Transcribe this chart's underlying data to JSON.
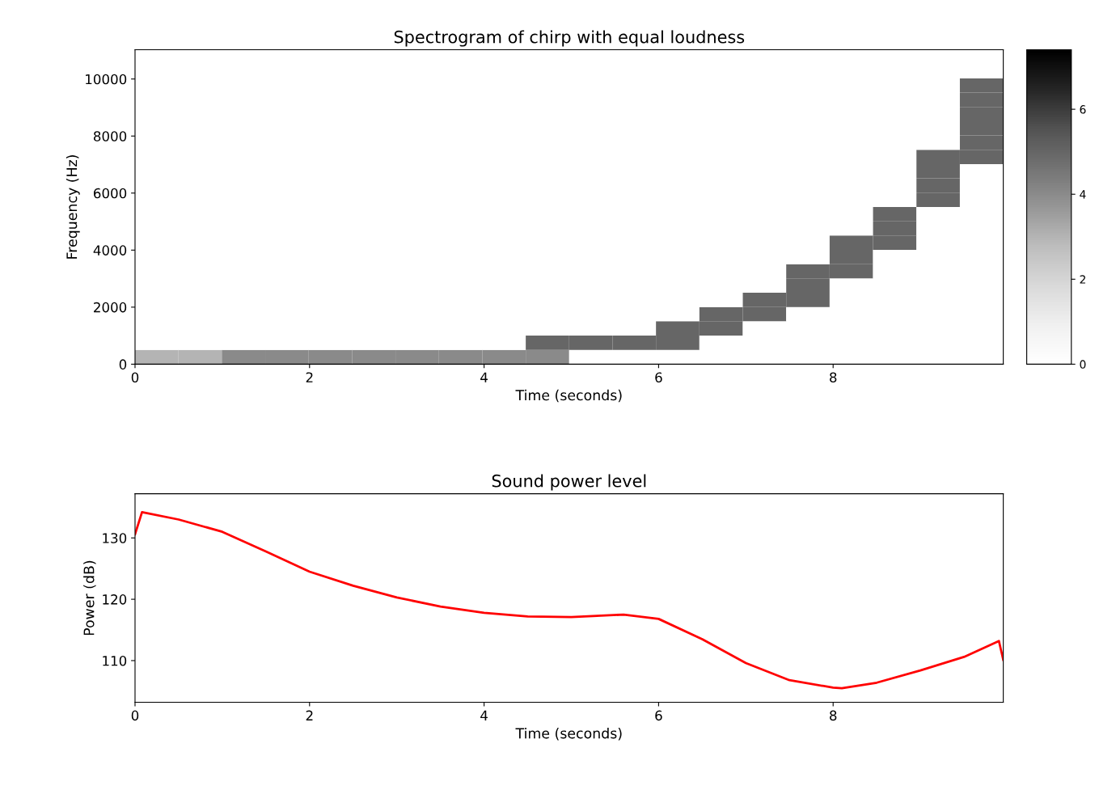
{
  "chart_data": [
    {
      "type": "heatmap",
      "title": "Spectrogram of chirp with equal loudness",
      "xlabel": "Time (seconds)",
      "ylabel": "Frequency (Hz)",
      "xlim": [
        0,
        9.95
      ],
      "ylim": [
        0,
        11025
      ],
      "xticks": [
        0,
        2,
        4,
        6,
        8
      ],
      "yticks": [
        0,
        2000,
        4000,
        6000,
        8000,
        10000
      ],
      "clim": [
        0,
        7.4
      ],
      "cticks": [
        0,
        2,
        4,
        6
      ],
      "cells": [
        [
          0,
          0,
          0,
          0,
          0,
          0,
          0,
          0,
          0,
          0,
          0,
          0,
          0,
          0,
          0,
          0,
          0,
          0,
          0,
          0
        ],
        [
          0,
          0,
          0,
          0,
          0,
          0,
          0,
          0,
          0,
          0,
          0,
          0,
          0,
          0,
          0,
          0,
          0,
          0,
          0,
          0
        ],
        [
          0,
          0,
          0,
          0,
          0,
          0,
          0,
          0,
          0,
          0,
          0,
          0,
          0,
          0,
          0,
          0,
          0,
          0,
          0,
          5
        ],
        [
          0,
          0,
          0,
          0,
          0,
          0,
          0,
          0,
          0,
          0,
          0,
          0,
          0,
          0,
          0,
          0,
          0,
          0,
          0,
          5
        ],
        [
          0,
          0,
          0,
          0,
          0,
          0,
          0,
          0,
          0,
          0,
          0,
          0,
          0,
          0,
          0,
          0,
          0,
          0,
          0,
          5
        ],
        [
          0,
          0,
          0,
          0,
          0,
          0,
          0,
          0,
          0,
          0,
          0,
          0,
          0,
          0,
          0,
          0,
          0,
          0,
          0,
          5
        ],
        [
          0,
          0,
          0,
          0,
          0,
          0,
          0,
          0,
          0,
          0,
          0,
          0,
          0,
          0,
          0,
          0,
          0,
          0,
          0,
          5
        ],
        [
          0,
          0,
          0,
          0,
          0,
          0,
          0,
          0,
          0,
          0,
          0,
          0,
          0,
          0,
          0,
          0,
          0,
          0,
          5,
          5
        ],
        [
          0,
          0,
          0,
          0,
          0,
          0,
          0,
          0,
          0,
          0,
          0,
          0,
          0,
          0,
          0,
          0,
          0,
          0,
          5,
          0
        ],
        [
          0,
          0,
          0,
          0,
          0,
          0,
          0,
          0,
          0,
          0,
          0,
          0,
          0,
          0,
          0,
          0,
          0,
          0,
          5,
          0
        ],
        [
          0,
          0,
          0,
          0,
          0,
          0,
          0,
          0,
          0,
          0,
          0,
          0,
          0,
          0,
          0,
          0,
          0,
          0,
          5,
          0
        ],
        [
          0,
          0,
          0,
          0,
          0,
          0,
          0,
          0,
          0,
          0,
          0,
          0,
          0,
          0,
          0,
          0,
          0,
          5,
          0,
          0
        ],
        [
          0,
          0,
          0,
          0,
          0,
          0,
          0,
          0,
          0,
          0,
          0,
          0,
          0,
          0,
          0,
          0,
          0,
          5,
          0,
          0
        ],
        [
          0,
          0,
          0,
          0,
          0,
          0,
          0,
          0,
          0,
          0,
          0,
          0,
          0,
          0,
          0,
          0,
          5,
          5,
          0,
          0
        ],
        [
          0,
          0,
          0,
          0,
          0,
          0,
          0,
          0,
          0,
          0,
          0,
          0,
          0,
          0,
          0,
          0,
          5,
          0,
          0,
          0
        ],
        [
          0,
          0,
          0,
          0,
          0,
          0,
          0,
          0,
          0,
          0,
          0,
          0,
          0,
          0,
          0,
          5,
          5,
          0,
          0,
          0
        ],
        [
          0,
          0,
          0,
          0,
          0,
          0,
          0,
          0,
          0,
          0,
          0,
          0,
          0,
          0,
          0,
          5,
          0,
          0,
          0,
          0
        ],
        [
          0,
          0,
          0,
          0,
          0,
          0,
          0,
          0,
          0,
          0,
          0,
          0,
          0,
          0,
          5,
          5,
          0,
          0,
          0,
          0
        ],
        [
          0,
          0,
          0,
          0,
          0,
          0,
          0,
          0,
          0,
          0,
          0,
          0,
          0,
          5,
          5,
          0,
          0,
          0,
          0,
          0
        ],
        [
          0,
          0,
          0,
          0,
          0,
          0,
          0,
          0,
          0,
          0,
          0,
          0,
          5,
          5,
          0,
          0,
          0,
          0,
          0,
          0
        ],
        [
          0,
          0,
          0,
          0,
          0,
          0,
          0,
          0,
          0,
          5,
          5,
          5,
          5,
          0,
          0,
          0,
          0,
          0,
          0,
          0
        ],
        [
          3,
          3,
          4,
          4,
          4,
          4,
          4,
          4,
          4,
          4,
          0,
          0,
          0,
          0,
          0,
          0,
          0,
          0,
          0,
          0
        ]
      ]
    },
    {
      "type": "line",
      "title": "Sound power level",
      "xlabel": "Time (seconds)",
      "ylabel": "Power (dB)",
      "xlim": [
        0,
        9.95
      ],
      "ylim": [
        103.2,
        137.2
      ],
      "xticks": [
        0,
        2,
        4,
        6,
        8
      ],
      "yticks": [
        110,
        120,
        130
      ],
      "series": [
        {
          "color": "#ff0000",
          "x": [
            0,
            0.08,
            0.5,
            1,
            1.5,
            2,
            2.5,
            3,
            3.5,
            4,
            4.5,
            5,
            5.6,
            6,
            6.5,
            7,
            7.5,
            8,
            8.1,
            8.5,
            9,
            9.5,
            9.9,
            9.95
          ],
          "values": [
            130.6,
            134.2,
            133,
            131,
            127.8,
            124.5,
            122.2,
            120.3,
            118.8,
            117.8,
            117.2,
            117.1,
            117.5,
            116.8,
            113.5,
            109.6,
            106.8,
            105.6,
            105.5,
            106.4,
            108.4,
            110.6,
            113.2,
            110.1
          ]
        }
      ]
    }
  ]
}
